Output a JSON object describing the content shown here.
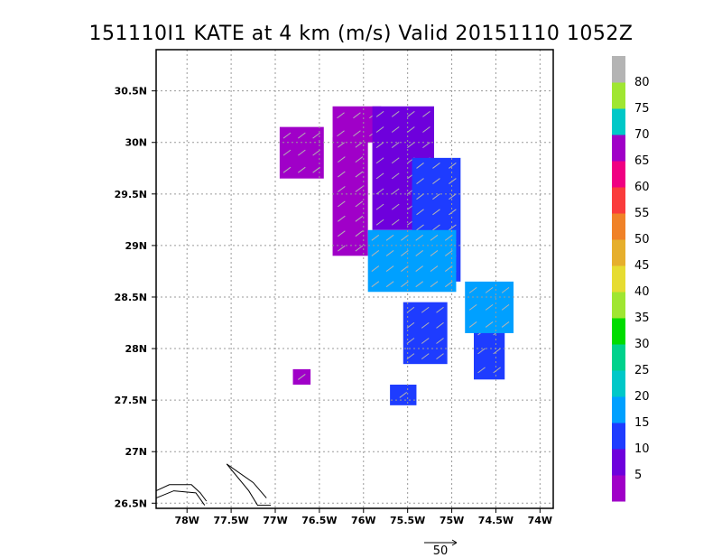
{
  "chart_data": {
    "type": "heatmap",
    "title": "151110I1 KATE at 4 km (m/s) Valid 20151110 1052Z",
    "x_ticks": [
      "78W",
      "77.5W",
      "77W",
      "76.5W",
      "76W",
      "75.5W",
      "75W",
      "74.5W",
      "74W"
    ],
    "x_tick_values": [
      -78,
      -77.5,
      -77,
      -76.5,
      -76,
      -75.5,
      -75,
      -74.5,
      -74
    ],
    "y_ticks": [
      "26.5N",
      "27N",
      "27.5N",
      "28N",
      "28.5N",
      "29N",
      "29.5N",
      "30N",
      "30.5N"
    ],
    "y_tick_values": [
      26.5,
      27,
      27.5,
      28,
      28.5,
      29,
      29.5,
      30,
      30.5
    ],
    "xlim": [
      -78.35,
      -73.85
    ],
    "ylim": [
      26.45,
      30.9
    ],
    "grid": true,
    "grid_style": "dotted",
    "colorbar": {
      "labels": [
        "5",
        "10",
        "15",
        "20",
        "25",
        "30",
        "35",
        "40",
        "45",
        "50",
        "55",
        "60",
        "65",
        "70",
        "75",
        "80"
      ],
      "colors": [
        "#a000c8",
        "#6e00dc",
        "#1e3cff",
        "#00a0ff",
        "#00c8c8",
        "#00d28c",
        "#00dc00",
        "#a0e632",
        "#e6dc32",
        "#e6af2d",
        "#f08228",
        "#fa3c3c",
        "#f00082",
        "#a000c8",
        "#00c8c8",
        "#a0e632",
        "#b4b4b4"
      ]
    },
    "wind_regions": [
      {
        "speed_class": "5",
        "lon_range": [
          -76.35,
          -75.95
        ],
        "lat_range": [
          28.9,
          30.05
        ]
      },
      {
        "speed_class": "5",
        "lon_range": [
          -76.95,
          -76.45
        ],
        "lat_range": [
          29.65,
          30.15
        ]
      },
      {
        "speed_class": "5",
        "lon_range": [
          -76.35,
          -75.8
        ],
        "lat_range": [
          30.0,
          30.35
        ]
      },
      {
        "speed_class": "5",
        "lon_range": [
          -76.8,
          -76.6
        ],
        "lat_range": [
          27.65,
          27.8
        ]
      },
      {
        "speed_class": "10",
        "lon_range": [
          -75.9,
          -75.2
        ],
        "lat_range": [
          29.15,
          30.35
        ]
      },
      {
        "speed_class": "15",
        "lon_range": [
          -75.45,
          -74.9
        ],
        "lat_range": [
          28.65,
          29.85
        ]
      },
      {
        "speed_class": "15",
        "lon_range": [
          -75.55,
          -75.05
        ],
        "lat_range": [
          27.85,
          28.45
        ]
      },
      {
        "speed_class": "15",
        "lon_range": [
          -74.75,
          -74.4
        ],
        "lat_range": [
          27.7,
          28.25
        ]
      },
      {
        "speed_class": "15",
        "lon_range": [
          -75.7,
          -75.4
        ],
        "lat_range": [
          27.45,
          27.65
        ]
      },
      {
        "speed_class": "20",
        "lon_range": [
          -75.95,
          -74.95
        ],
        "lat_range": [
          28.55,
          29.15
        ]
      },
      {
        "speed_class": "20",
        "lon_range": [
          -74.85,
          -74.3
        ],
        "lat_range": [
          28.15,
          28.65
        ]
      }
    ],
    "reference_vector": {
      "label": "50"
    }
  }
}
